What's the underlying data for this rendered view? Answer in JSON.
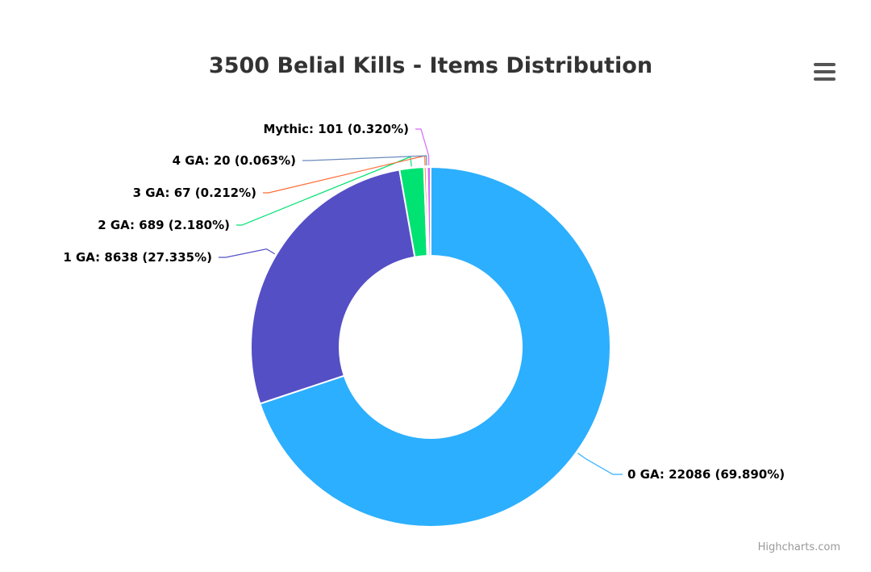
{
  "chart_data": {
    "type": "pie",
    "title": "3500 Belial Kills - Items Distribution",
    "donut": true,
    "slices": [
      {
        "name": "0 GA",
        "value": 22086,
        "percent": 69.89,
        "color": "#2caffe",
        "label": "0 GA: 22086 (69.890%)"
      },
      {
        "name": "1 GA",
        "value": 8638,
        "percent": 27.335,
        "color": "#544fc5",
        "label": "1 GA: 8638 (27.335%)"
      },
      {
        "name": "2 GA",
        "value": 689,
        "percent": 2.18,
        "color": "#00e272",
        "label": "2 GA: 689 (2.180%)"
      },
      {
        "name": "3 GA",
        "value": 67,
        "percent": 0.212,
        "color": "#fe6a35",
        "label": "3 GA: 67 (0.212%)"
      },
      {
        "name": "4 GA",
        "value": 20,
        "percent": 0.063,
        "color": "#6b8abc",
        "label": "4 GA: 20 (0.063%)"
      },
      {
        "name": "Mythic",
        "value": 101,
        "percent": 0.32,
        "color": "#d568fb",
        "label": "Mythic: 101 (0.320%)"
      }
    ]
  },
  "menu": {
    "icon": "hamburger-menu-icon"
  },
  "credits": "Highcharts.com"
}
